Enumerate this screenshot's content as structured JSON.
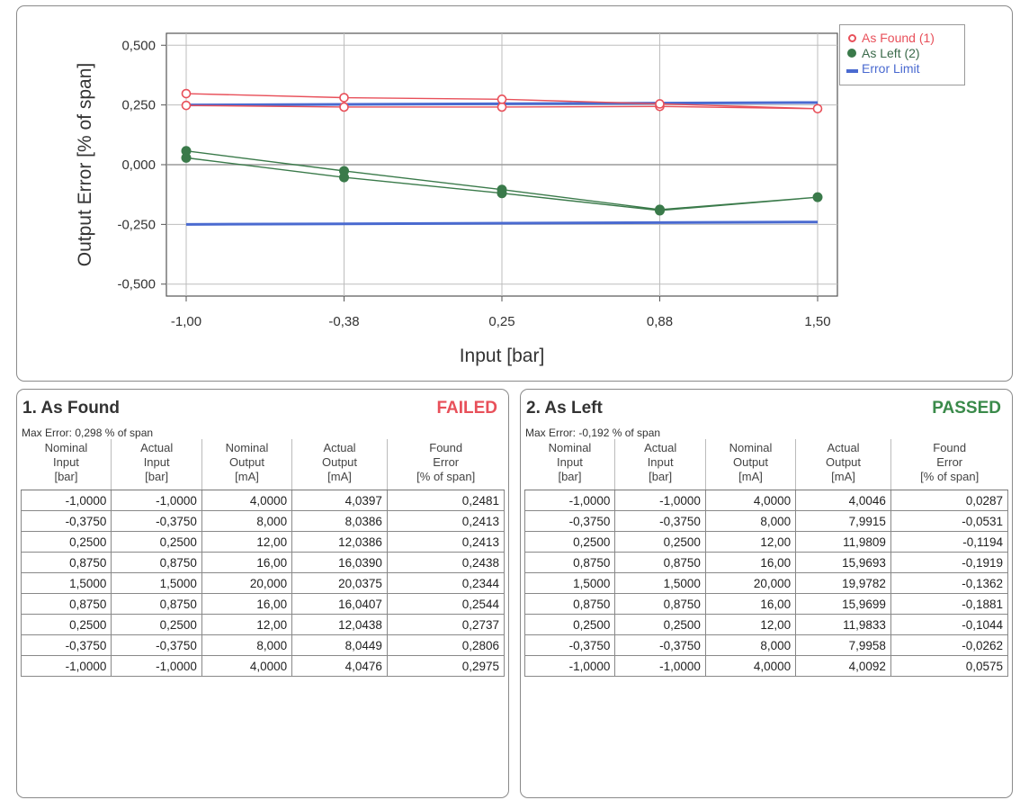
{
  "chart_data": {
    "type": "line",
    "title": "",
    "xlabel": "Input [bar]",
    "ylabel": "Output Error [% of span]",
    "x_tick_labels": [
      "-1,00",
      "-0,38",
      "0,25",
      "0,88",
      "1,50"
    ],
    "x_ticks": [
      -1.0,
      -0.375,
      0.25,
      0.875,
      1.5
    ],
    "y_tick_labels": [
      "0,500",
      "0,250",
      "0,000",
      "-0,250",
      "-0,500"
    ],
    "y_ticks": [
      0.5,
      0.25,
      0.0,
      -0.25,
      -0.5
    ],
    "xlim": [
      -1.0,
      1.5
    ],
    "ylim": [
      -0.55,
      0.55
    ],
    "grid": true,
    "legend_position": "top-right outside",
    "series": [
      {
        "name": "As Found (1)",
        "marker": "open-circle",
        "color": "#e8505a",
        "x": [
          -1.0,
          -0.375,
          0.25,
          0.875,
          1.5,
          0.875,
          0.25,
          -0.375,
          -1.0
        ],
        "y": [
          0.2481,
          0.2413,
          0.2413,
          0.2438,
          0.2344,
          0.2544,
          0.2737,
          0.2806,
          0.2975
        ]
      },
      {
        "name": "As Left (2)",
        "marker": "filled-circle",
        "color": "#3a7a4a",
        "x": [
          -1.0,
          -0.375,
          0.25,
          0.875,
          1.5,
          0.875,
          0.25,
          -0.375,
          -1.0
        ],
        "y": [
          0.0287,
          -0.0531,
          -0.1194,
          -0.1919,
          -0.1362,
          -0.1881,
          -0.1044,
          -0.0262,
          0.0575
        ]
      },
      {
        "name": "Error Limit",
        "marker": "none",
        "color": "#4a6ad0",
        "lines": [
          {
            "x": [
              -1.0,
              1.5
            ],
            "y": [
              0.25,
              0.26
            ]
          },
          {
            "x": [
              -1.0,
              1.5
            ],
            "y": [
              -0.25,
              -0.24
            ]
          }
        ]
      }
    ]
  },
  "found": {
    "title": "1. As Found",
    "status": "FAILED",
    "status_color": "#e8505a",
    "max_error": "Max Error: 0,298 % of span",
    "headers": [
      [
        "Nominal",
        "Input",
        "[bar]"
      ],
      [
        "Actual",
        "Input",
        "[bar]"
      ],
      [
        "Nominal",
        "Output",
        "[mA]"
      ],
      [
        "Actual",
        "Output",
        "[mA]"
      ],
      [
        "Found",
        "Error",
        "[% of span]"
      ]
    ],
    "rows": [
      [
        "-1,0000",
        "-1,0000",
        "4,0000",
        "4,0397",
        "0,2481"
      ],
      [
        "-0,3750",
        "-0,3750",
        "8,000",
        "8,0386",
        "0,2413"
      ],
      [
        "0,2500",
        "0,2500",
        "12,00",
        "12,0386",
        "0,2413"
      ],
      [
        "0,8750",
        "0,8750",
        "16,00",
        "16,0390",
        "0,2438"
      ],
      [
        "1,5000",
        "1,5000",
        "20,000",
        "20,0375",
        "0,2344"
      ],
      [
        "0,8750",
        "0,8750",
        "16,00",
        "16,0407",
        "0,2544"
      ],
      [
        "0,2500",
        "0,2500",
        "12,00",
        "12,0438",
        "0,2737"
      ],
      [
        "-0,3750",
        "-0,3750",
        "8,000",
        "8,0449",
        "0,2806"
      ],
      [
        "-1,0000",
        "-1,0000",
        "4,0000",
        "4,0476",
        "0,2975"
      ]
    ]
  },
  "left": {
    "title": "2. As Left",
    "status": "PASSED",
    "status_color": "#3a8a4a",
    "max_error": "Max Error: -0,192 % of span",
    "headers": [
      [
        "Nominal",
        "Input",
        "[bar]"
      ],
      [
        "Actual",
        "Input",
        "[bar]"
      ],
      [
        "Nominal",
        "Output",
        "[mA]"
      ],
      [
        "Actual",
        "Output",
        "[mA]"
      ],
      [
        "Found",
        "Error",
        "[% of span]"
      ]
    ],
    "rows": [
      [
        "-1,0000",
        "-1,0000",
        "4,0000",
        "4,0046",
        "0,0287"
      ],
      [
        "-0,3750",
        "-0,3750",
        "8,000",
        "7,9915",
        "-0,0531"
      ],
      [
        "0,2500",
        "0,2500",
        "12,00",
        "11,9809",
        "-0,1194"
      ],
      [
        "0,8750",
        "0,8750",
        "16,00",
        "15,9693",
        "-0,1919"
      ],
      [
        "1,5000",
        "1,5000",
        "20,000",
        "19,9782",
        "-0,1362"
      ],
      [
        "0,8750",
        "0,8750",
        "16,00",
        "15,9699",
        "-0,1881"
      ],
      [
        "0,2500",
        "0,2500",
        "12,00",
        "11,9833",
        "-0,1044"
      ],
      [
        "-0,3750",
        "-0,3750",
        "8,000",
        "7,9958",
        "-0,0262"
      ],
      [
        "-1,0000",
        "-1,0000",
        "4,0000",
        "4,0092",
        "0,0575"
      ]
    ]
  }
}
